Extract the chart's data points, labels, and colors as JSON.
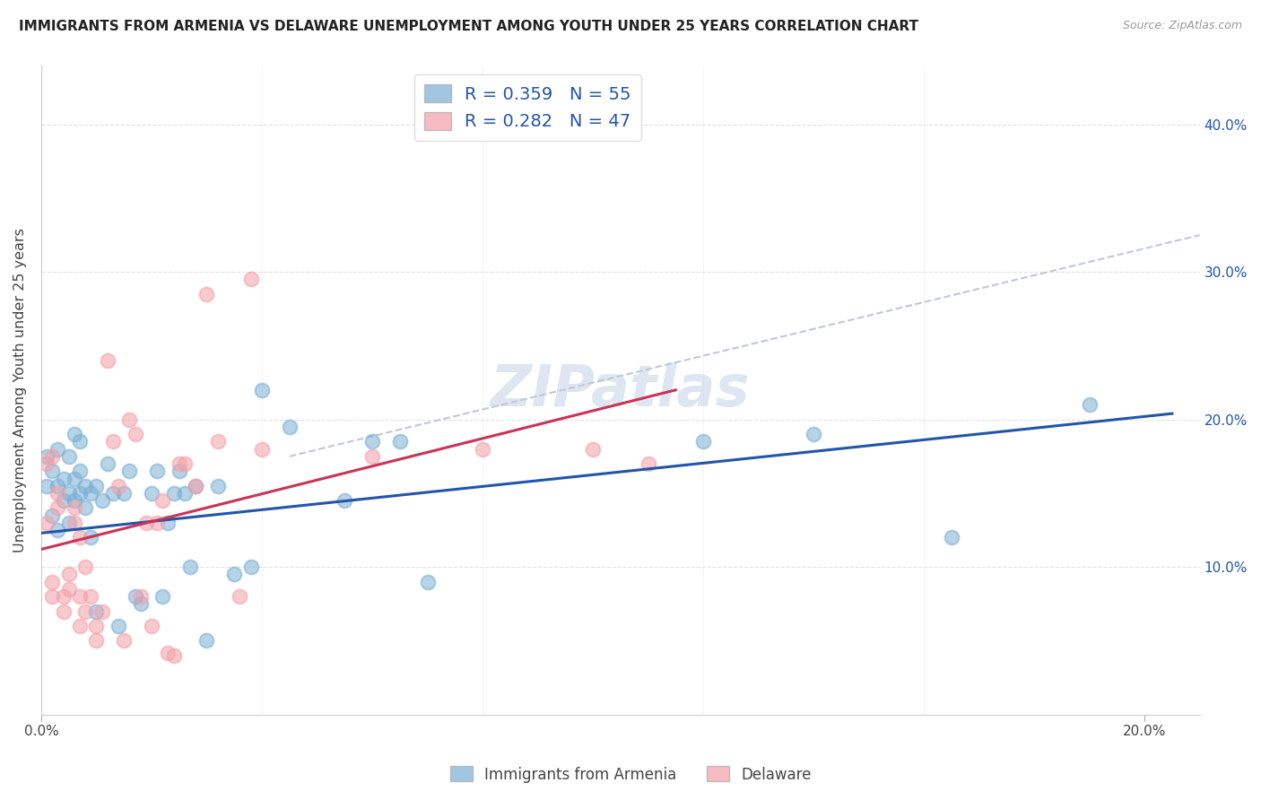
{
  "title": "IMMIGRANTS FROM ARMENIA VS DELAWARE UNEMPLOYMENT AMONG YOUTH UNDER 25 YEARS CORRELATION CHART",
  "source": "Source: ZipAtlas.com",
  "ylabel": "Unemployment Among Youth under 25 years",
  "xlim": [
    0.0,
    0.21
  ],
  "ylim": [
    0.0,
    0.44
  ],
  "yticks": [
    0.1,
    0.2,
    0.3,
    0.4
  ],
  "ytick_labels_right": [
    "10.0%",
    "20.0%",
    "30.0%",
    "40.0%"
  ],
  "xticks": [
    0.0,
    0.2
  ],
  "xtick_labels": [
    "0.0%",
    "20.0%"
  ],
  "legend_line1": "R = 0.359   N = 55",
  "legend_line2": "R = 0.282   N = 47",
  "blue_color": "#7BAFD4",
  "pink_color": "#F4A0A8",
  "blue_line_color": "#2255AA",
  "pink_line_color": "#CC3355",
  "dashed_line_color": "#C0C8D8",
  "watermark": "ZIPatlas",
  "blue_scatter_x": [
    0.001,
    0.001,
    0.002,
    0.002,
    0.003,
    0.003,
    0.003,
    0.004,
    0.004,
    0.005,
    0.005,
    0.005,
    0.006,
    0.006,
    0.006,
    0.007,
    0.007,
    0.007,
    0.008,
    0.008,
    0.009,
    0.009,
    0.01,
    0.01,
    0.011,
    0.012,
    0.013,
    0.014,
    0.015,
    0.016,
    0.017,
    0.018,
    0.02,
    0.021,
    0.022,
    0.023,
    0.024,
    0.025,
    0.026,
    0.027,
    0.028,
    0.03,
    0.032,
    0.035,
    0.038,
    0.04,
    0.045,
    0.055,
    0.06,
    0.065,
    0.07,
    0.12,
    0.14,
    0.165,
    0.19
  ],
  "blue_scatter_y": [
    0.155,
    0.175,
    0.135,
    0.165,
    0.125,
    0.155,
    0.18,
    0.145,
    0.16,
    0.13,
    0.15,
    0.175,
    0.145,
    0.16,
    0.19,
    0.15,
    0.165,
    0.185,
    0.14,
    0.155,
    0.12,
    0.15,
    0.155,
    0.07,
    0.145,
    0.17,
    0.15,
    0.06,
    0.15,
    0.165,
    0.08,
    0.075,
    0.15,
    0.165,
    0.08,
    0.13,
    0.15,
    0.165,
    0.15,
    0.1,
    0.155,
    0.05,
    0.155,
    0.095,
    0.1,
    0.22,
    0.195,
    0.145,
    0.185,
    0.185,
    0.09,
    0.185,
    0.19,
    0.12,
    0.21
  ],
  "pink_scatter_x": [
    0.001,
    0.001,
    0.002,
    0.002,
    0.002,
    0.003,
    0.003,
    0.004,
    0.004,
    0.005,
    0.005,
    0.006,
    0.006,
    0.007,
    0.007,
    0.007,
    0.008,
    0.008,
    0.009,
    0.01,
    0.01,
    0.011,
    0.012,
    0.013,
    0.014,
    0.015,
    0.016,
    0.017,
    0.018,
    0.019,
    0.02,
    0.021,
    0.022,
    0.023,
    0.024,
    0.025,
    0.026,
    0.028,
    0.03,
    0.032,
    0.036,
    0.038,
    0.04,
    0.06,
    0.08,
    0.1,
    0.11
  ],
  "pink_scatter_y": [
    0.17,
    0.13,
    0.08,
    0.09,
    0.175,
    0.14,
    0.15,
    0.08,
    0.07,
    0.085,
    0.095,
    0.13,
    0.14,
    0.12,
    0.06,
    0.08,
    0.07,
    0.1,
    0.08,
    0.05,
    0.06,
    0.07,
    0.24,
    0.185,
    0.155,
    0.05,
    0.2,
    0.19,
    0.08,
    0.13,
    0.06,
    0.13,
    0.145,
    0.042,
    0.04,
    0.17,
    0.17,
    0.155,
    0.285,
    0.185,
    0.08,
    0.295,
    0.18,
    0.175,
    0.18,
    0.18,
    0.17
  ],
  "blue_trend_x": [
    0.0,
    0.205
  ],
  "blue_trend_y": [
    0.123,
    0.204
  ],
  "pink_trend_x": [
    0.0,
    0.115
  ],
  "pink_trend_y": [
    0.112,
    0.22
  ],
  "dashed_trend_x": [
    0.045,
    0.21
  ],
  "dashed_trend_y": [
    0.175,
    0.325
  ],
  "background_color": "#FFFFFF",
  "grid_color": "#E0E0E0",
  "cat_legend_labels": [
    "Immigrants from Armenia",
    "Delaware"
  ]
}
